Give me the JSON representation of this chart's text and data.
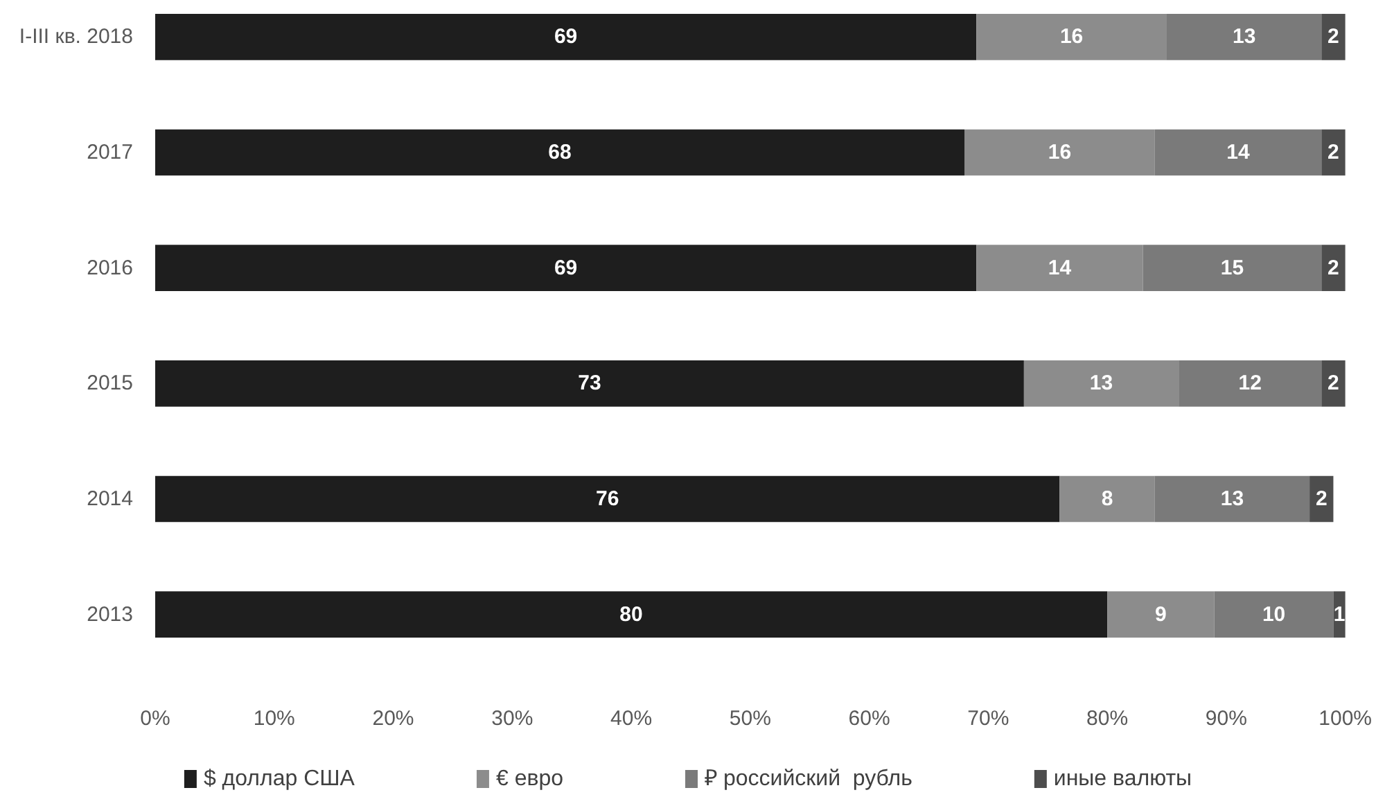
{
  "chart_data": {
    "type": "bar",
    "orientation": "horizontal",
    "stacked": true,
    "categories": [
      "I-III кв. 2018",
      "2017",
      "2016",
      "2015",
      "2014",
      "2013"
    ],
    "series": [
      {
        "name": "$ доллар США",
        "color": "#1e1e1e",
        "values": [
          69,
          68,
          69,
          73,
          76,
          80
        ]
      },
      {
        "name": "€ евро",
        "color": "#8c8c8c",
        "values": [
          16,
          16,
          14,
          13,
          8,
          9
        ]
      },
      {
        "name": "₽ российский  рубль",
        "color": "#7a7a7a",
        "values": [
          13,
          14,
          15,
          12,
          13,
          10
        ]
      },
      {
        "name": "иные валюты",
        "color": "#4d4d4d",
        "values": [
          2,
          2,
          2,
          2,
          2,
          1
        ]
      }
    ],
    "xlim": [
      0,
      100
    ],
    "xticks": [
      {
        "value": 0,
        "label": "0%"
      },
      {
        "value": 10,
        "label": "10%"
      },
      {
        "value": 20,
        "label": "20%"
      },
      {
        "value": 30,
        "label": "30%"
      },
      {
        "value": 40,
        "label": "40%"
      },
      {
        "value": 50,
        "label": "50%"
      },
      {
        "value": 60,
        "label": "60%"
      },
      {
        "value": 70,
        "label": "70%"
      },
      {
        "value": 80,
        "label": "80%"
      },
      {
        "value": 90,
        "label": "90%"
      },
      {
        "value": 100,
        "label": "100%"
      }
    ],
    "data_labels": true,
    "legend": "bottom"
  }
}
